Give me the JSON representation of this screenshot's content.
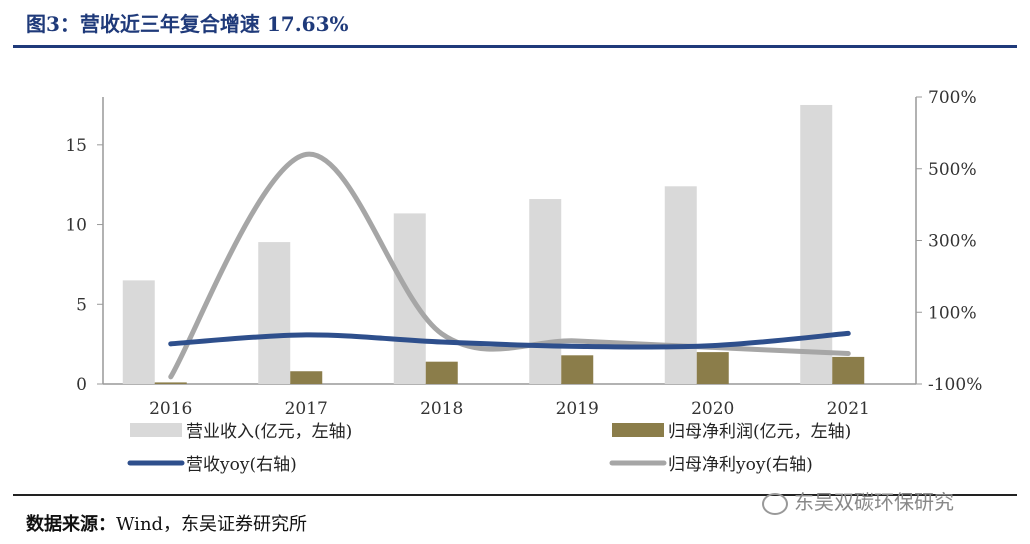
{
  "header": {
    "title": "图3：营收近三年复合增速 17.63%"
  },
  "chart_data": {
    "type": "bar+line",
    "categories": [
      "2016",
      "2017",
      "2018",
      "2019",
      "2020",
      "2021"
    ],
    "left_axis": {
      "min": 0,
      "max": 18,
      "ticks": [
        0,
        5,
        10,
        15
      ],
      "tick_labels": [
        "0",
        "5",
        "10",
        "15"
      ]
    },
    "right_axis": {
      "min": -100,
      "max": 700,
      "ticks": [
        -100,
        100,
        300,
        500,
        700
      ],
      "tick_labels": [
        "-100%",
        "100%",
        "300%",
        "500%",
        "700%"
      ]
    },
    "series": [
      {
        "name": "营业收入(亿元，左轴)",
        "type": "bar",
        "axis": "left",
        "color": "#d9d9d9",
        "values": [
          6.5,
          8.9,
          10.7,
          11.6,
          12.4,
          17.5
        ]
      },
      {
        "name": "归母净利润(亿元，左轴)",
        "type": "bar",
        "axis": "left",
        "color": "#8b7d4a",
        "values": [
          0.1,
          0.8,
          1.4,
          1.8,
          2.0,
          1.7
        ]
      },
      {
        "name": "营收yoy(右轴)",
        "type": "line",
        "axis": "right",
        "color": "#2e4f8c",
        "values": [
          12,
          37,
          17,
          5,
          7,
          41
        ]
      },
      {
        "name": "归母净利yoy(右轴)",
        "type": "line",
        "axis": "right",
        "color": "#a6a6a6",
        "values": [
          -80,
          540,
          40,
          20,
          2,
          -15
        ]
      }
    ]
  },
  "footer": {
    "source_label": "数据来源：",
    "source_text": "Wind，东吴证券研究所",
    "watermark": "东吴双碳环保研究"
  }
}
